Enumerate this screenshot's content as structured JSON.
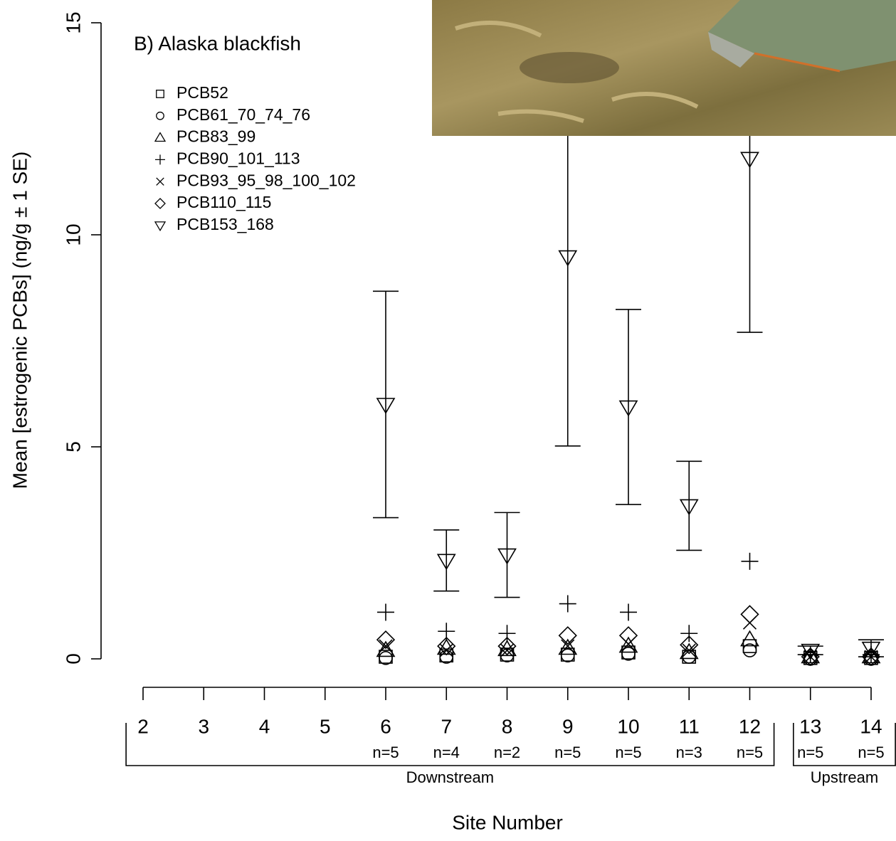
{
  "chart_data": {
    "type": "scatter",
    "title": "B) Alaska blackfish",
    "y_label": "Mean [estrogenic PCBs] (ng/g ± 1 SE)",
    "x_label": "Site Number",
    "x": [
      2,
      3,
      4,
      5,
      6,
      7,
      8,
      9,
      10,
      11,
      12,
      13,
      14
    ],
    "xlim": [
      2,
      14
    ],
    "xticks": [
      2,
      3,
      4,
      5,
      6,
      7,
      8,
      9,
      10,
      11,
      12,
      13,
      14
    ],
    "ylim": [
      0,
      15
    ],
    "yticks": [
      0,
      5,
      10,
      15
    ],
    "n_labels": [
      null,
      null,
      null,
      null,
      "n=5",
      "n=4",
      "n=2",
      "n=5",
      "n=5",
      "n=3",
      "n=5",
      "n=5",
      "n=5"
    ],
    "groups": [
      {
        "label": "Downstream",
        "range": [
          2,
          12
        ]
      },
      {
        "label": "Upstream",
        "range": [
          13,
          14
        ]
      }
    ],
    "series": [
      {
        "name": "PCB52",
        "marker": "square",
        "color": "#000000",
        "values": [
          null,
          null,
          null,
          null,
          0.05,
          0.08,
          0.1,
          0.1,
          0.15,
          0.05,
          0.3,
          0.02,
          0.02
        ]
      },
      {
        "name": "PCB61_70_74_76",
        "marker": "circle",
        "color": "#000000",
        "values": [
          null,
          null,
          null,
          null,
          0.02,
          0.05,
          0.08,
          0.08,
          0.12,
          0.05,
          0.2,
          0.0,
          0.0
        ]
      },
      {
        "name": "PCB83_99",
        "marker": "triangle-up",
        "color": "#000000",
        "values": [
          null,
          null,
          null,
          null,
          0.2,
          0.25,
          0.22,
          0.25,
          0.3,
          0.15,
          0.45,
          0.05,
          0.05
        ]
      },
      {
        "name": "PCB90_101_113",
        "marker": "plus",
        "color": "#000000",
        "values": [
          null,
          null,
          null,
          null,
          1.1,
          0.65,
          0.6,
          1.3,
          1.1,
          0.6,
          2.3,
          0.1,
          0.1
        ]
      },
      {
        "name": "PCB93_95_98_100_102",
        "marker": "x",
        "color": "#000000",
        "values": [
          null,
          null,
          null,
          null,
          0.3,
          0.2,
          0.2,
          0.3,
          0.35,
          0.2,
          0.85,
          0.05,
          0.05
        ]
      },
      {
        "name": "PCB110_115",
        "marker": "diamond",
        "color": "#000000",
        "values": [
          null,
          null,
          null,
          null,
          0.45,
          0.3,
          0.3,
          0.55,
          0.55,
          0.33,
          1.05,
          0.05,
          0.05
        ]
      },
      {
        "name": "PCB153_168",
        "marker": "triangle-down",
        "color": "#000000",
        "values": [
          null,
          null,
          null,
          null,
          6.0,
          2.32,
          2.45,
          9.48,
          5.94,
          3.61,
          11.8,
          0.2,
          0.25
        ],
        "errors": [
          null,
          null,
          null,
          null,
          2.67,
          0.72,
          1.0,
          4.46,
          2.3,
          1.05,
          4.1,
          0.1,
          0.2
        ]
      }
    ]
  }
}
